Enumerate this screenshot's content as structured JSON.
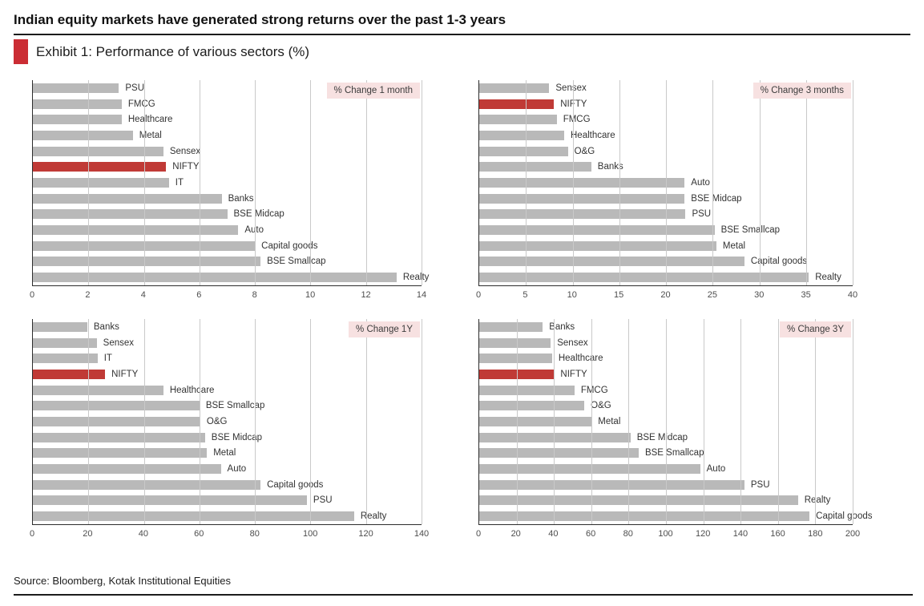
{
  "header": {
    "title": "Indian equity markets have generated strong returns over the past 1-3 years",
    "exhibit_label": "Exhibit 1: Performance of various sectors (%)"
  },
  "footer": {
    "source": "Source: Bloomberg, Kotak Institutional Equities"
  },
  "colors": {
    "bar": "#b9b9b9",
    "highlight": "#c03a36",
    "exhibit_marker": "#cb2d34",
    "legend_bg": "#f7e1e1",
    "grid": "#c9c9c9",
    "axis": "#2d2d2d",
    "label_text": "#333333",
    "tick_text": "#4d4d4d"
  },
  "highlight_category": "NIFTY",
  "chart_data": [
    {
      "type": "bar",
      "orientation": "horizontal",
      "legend": "% Change 1 month",
      "xlim": [
        0,
        14
      ],
      "tick_step": 2,
      "grid": true,
      "categories": [
        "PSU",
        "FMCG",
        "Healthcare",
        "Metal",
        "Sensex",
        "NIFTY",
        "IT",
        "Banks",
        "BSE Midcap",
        "Auto",
        "Capital goods",
        "BSE Smallcap",
        "Realty"
      ],
      "values": [
        3.1,
        3.2,
        3.2,
        3.6,
        4.7,
        4.8,
        4.9,
        6.8,
        7.0,
        7.4,
        8.0,
        8.2,
        13.1
      ]
    },
    {
      "type": "bar",
      "orientation": "horizontal",
      "legend": "% Change 3 months",
      "xlim": [
        0,
        40
      ],
      "tick_step": 5,
      "grid": true,
      "categories": [
        "Sensex",
        "NIFTY",
        "FMCG",
        "Healthcare",
        "O&G",
        "Banks",
        "Auto",
        "BSE Midcap",
        "PSU",
        "BSE Smallcap",
        "Metal",
        "Capital goods",
        "Realty"
      ],
      "values": [
        7.5,
        8.0,
        8.3,
        9.1,
        9.5,
        12.0,
        22.0,
        22.0,
        22.1,
        25.2,
        25.4,
        28.4,
        35.3
      ]
    },
    {
      "type": "bar",
      "orientation": "horizontal",
      "legend": "% Change 1Y",
      "xlim": [
        0,
        140
      ],
      "tick_step": 20,
      "grid": true,
      "categories": [
        "Banks",
        "Sensex",
        "IT",
        "NIFTY",
        "Healthcare",
        "BSE Smallcap",
        "O&G",
        "BSE Midcap",
        "Metal",
        "Auto",
        "Capital goods",
        "PSU",
        "Realty"
      ],
      "values": [
        19.6,
        23.0,
        23.3,
        26.0,
        47.0,
        60.0,
        60.3,
        62.0,
        62.7,
        67.7,
        82.0,
        98.7,
        115.7
      ]
    },
    {
      "type": "bar",
      "orientation": "horizontal",
      "legend": "% Change 3Y",
      "xlim": [
        0,
        200
      ],
      "tick_step": 20,
      "grid": true,
      "categories": [
        "Banks",
        "Sensex",
        "Healthcare",
        "NIFTY",
        "FMCG",
        "O&G",
        "Metal",
        "BSE Midcap",
        "BSE Smallcap",
        "Auto",
        "PSU",
        "Realty",
        "Capital goods"
      ],
      "values": [
        34.0,
        38.3,
        39.0,
        40.1,
        51.0,
        56.3,
        60.2,
        81.0,
        85.4,
        118.3,
        142.0,
        170.7,
        176.9
      ]
    }
  ]
}
